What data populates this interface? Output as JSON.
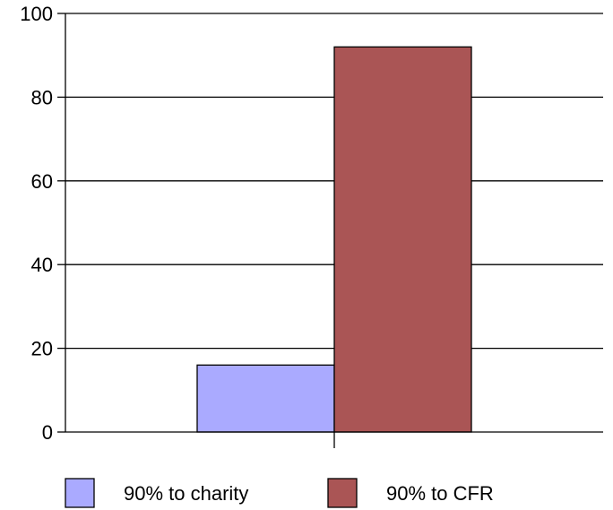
{
  "chart_data": {
    "type": "bar",
    "categories": [
      ""
    ],
    "series": [
      {
        "name": "90% to charity",
        "values": [
          16
        ],
        "color": "#aaaaff"
      },
      {
        "name": "90% to CFR",
        "values": [
          92
        ],
        "color": "#aa5555"
      }
    ],
    "ylim": [
      0,
      100
    ],
    "yticks": [
      0,
      20,
      40,
      60,
      80,
      100
    ],
    "grid": true,
    "legend_position": "bottom"
  }
}
